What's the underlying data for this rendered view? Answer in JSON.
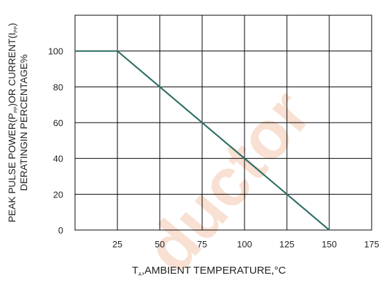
{
  "chart_data": {
    "type": "line",
    "xlabel": {
      "prefix": "T",
      "subscript": "A",
      "text": ",AMBIENT TEMPERATURE,°C"
    },
    "ylabel": {
      "line1_a": "PEAK PULSE POWER(P",
      "line1_sub_a": "PP",
      "line1_b": ")OR CURRENT(I",
      "line1_sub_b": "PP",
      "line1_c": ")",
      "line2": "DERATINGIN PERCENTAGE%"
    },
    "xlim": [
      0,
      175
    ],
    "ylim": [
      0,
      120
    ],
    "x_ticks": [
      25,
      50,
      75,
      100,
      125,
      150,
      175
    ],
    "y_ticks": [
      0,
      20,
      40,
      60,
      80,
      100
    ],
    "grid": true,
    "legend": "none",
    "series": [
      {
        "x": [
          0,
          25,
          150
        ],
        "y": [
          100,
          100,
          0
        ],
        "color": "#2f6e66"
      }
    ],
    "watermark": {
      "text": "ductor",
      "color": "#f8e0d2"
    }
  }
}
